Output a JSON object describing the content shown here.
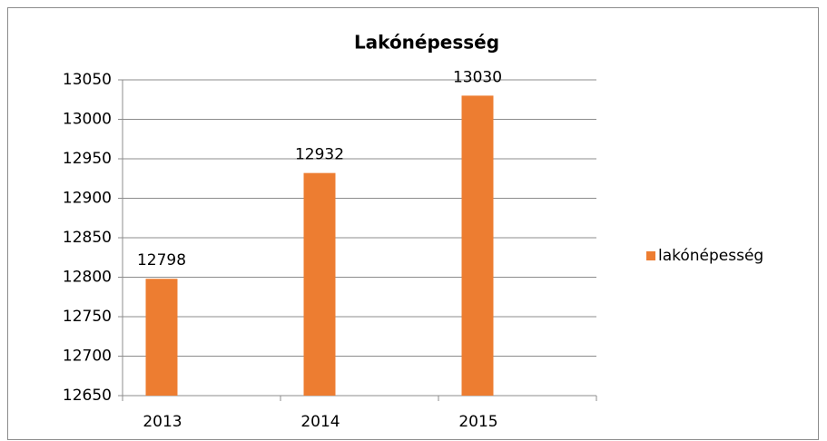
{
  "chart_data": {
    "type": "bar",
    "title": "Lakónépesség",
    "categories": [
      "2013",
      "2014",
      "2015"
    ],
    "series": [
      {
        "name": "lakónépesség",
        "color": "#ed7d31",
        "values": [
          12798,
          12932,
          13030
        ]
      }
    ],
    "ylim": [
      12650,
      13050
    ],
    "yticks": [
      12650,
      12700,
      12750,
      12800,
      12850,
      12900,
      12950,
      13000,
      13050
    ],
    "grid": true,
    "legend": "right",
    "data_labels": true
  }
}
